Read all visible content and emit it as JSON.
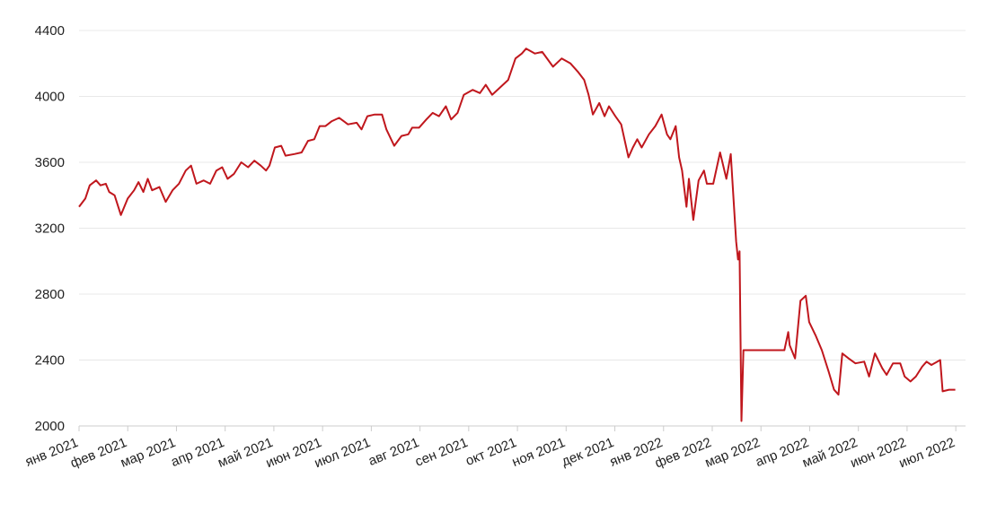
{
  "chart_data": {
    "type": "line",
    "xlim": [
      0,
      18.2
    ],
    "xticks": [
      {
        "value": 0,
        "label": "янв 2021"
      },
      {
        "value": 1,
        "label": "фев 2021"
      },
      {
        "value": 2,
        "label": "мар 2021"
      },
      {
        "value": 3,
        "label": "апр 2021"
      },
      {
        "value": 4,
        "label": "май 2021"
      },
      {
        "value": 5,
        "label": "июн 2021"
      },
      {
        "value": 6,
        "label": "июл 2021"
      },
      {
        "value": 7,
        "label": "авг 2021"
      },
      {
        "value": 8,
        "label": "сен 2021"
      },
      {
        "value": 9,
        "label": "окт 2021"
      },
      {
        "value": 10,
        "label": "ноя 2021"
      },
      {
        "value": 11,
        "label": "дек 2021"
      },
      {
        "value": 12,
        "label": "янв 2022"
      },
      {
        "value": 13,
        "label": "фев 2022"
      },
      {
        "value": 14,
        "label": "мар 2022"
      },
      {
        "value": 15,
        "label": "апр 2022"
      },
      {
        "value": 16,
        "label": "май 2022"
      },
      {
        "value": 17,
        "label": "июн 2022"
      },
      {
        "value": 18,
        "label": "июл 2022"
      }
    ],
    "ylim": [
      2000,
      4400
    ],
    "yticks": [
      2000,
      2400,
      2800,
      3200,
      3600,
      4000,
      4400
    ],
    "grid": true,
    "series": [
      {
        "color": "#c0171d",
        "x": [
          0,
          0.13,
          0.22,
          0.35,
          0.44,
          0.55,
          0.62,
          0.73,
          0.86,
          1.0,
          1.13,
          1.22,
          1.32,
          1.41,
          1.5,
          1.65,
          1.78,
          1.92,
          2.05,
          2.19,
          2.3,
          2.41,
          2.56,
          2.69,
          2.82,
          2.94,
          3.05,
          3.18,
          3.33,
          3.47,
          3.6,
          3.73,
          3.84,
          3.91,
          4.02,
          4.15,
          4.24,
          4.42,
          4.57,
          4.7,
          4.83,
          4.94,
          5.06,
          5.19,
          5.34,
          5.52,
          5.7,
          5.8,
          5.92,
          6.07,
          6.22,
          6.31,
          6.47,
          6.62,
          6.76,
          6.84,
          6.98,
          7.13,
          7.26,
          7.39,
          7.53,
          7.64,
          7.77,
          7.9,
          8.08,
          8.23,
          8.35,
          8.48,
          8.63,
          8.81,
          8.96,
          9.09,
          9.18,
          9.36,
          9.51,
          9.73,
          9.91,
          10.09,
          10.24,
          10.37,
          10.46,
          10.55,
          10.68,
          10.79,
          10.88,
          11.01,
          11.13,
          11.28,
          11.37,
          11.46,
          11.55,
          11.7,
          11.83,
          11.96,
          12.07,
          12.14,
          12.25,
          12.32,
          12.38,
          12.47,
          12.52,
          12.61,
          12.72,
          12.83,
          12.89,
          13.02,
          13.16,
          13.29,
          13.38,
          13.49,
          13.53,
          13.56,
          13.6,
          13.64,
          14.48,
          14.56,
          14.59,
          14.7,
          14.81,
          14.92,
          14.99,
          15.12,
          15.25,
          15.39,
          15.5,
          15.59,
          15.67,
          15.8,
          15.94,
          16.12,
          16.22,
          16.34,
          16.49,
          16.58,
          16.71,
          16.86,
          16.95,
          17.07,
          17.18,
          17.31,
          17.4,
          17.5,
          17.68,
          17.73,
          17.86,
          17.99
        ],
        "values": [
          3330,
          3380,
          3460,
          3490,
          3460,
          3470,
          3420,
          3400,
          3280,
          3380,
          3430,
          3480,
          3420,
          3500,
          3430,
          3450,
          3360,
          3430,
          3470,
          3550,
          3580,
          3470,
          3490,
          3470,
          3550,
          3570,
          3500,
          3530,
          3600,
          3570,
          3610,
          3580,
          3550,
          3580,
          3690,
          3700,
          3640,
          3650,
          3660,
          3730,
          3740,
          3820,
          3820,
          3850,
          3870,
          3830,
          3840,
          3800,
          3880,
          3890,
          3890,
          3800,
          3700,
          3760,
          3770,
          3810,
          3810,
          3860,
          3900,
          3880,
          3940,
          3860,
          3900,
          4010,
          4040,
          4020,
          4070,
          4010,
          4050,
          4100,
          4230,
          4260,
          4290,
          4260,
          4270,
          4180,
          4230,
          4200,
          4150,
          4100,
          4010,
          3890,
          3960,
          3880,
          3940,
          3880,
          3830,
          3630,
          3690,
          3740,
          3690,
          3770,
          3820,
          3890,
          3770,
          3740,
          3820,
          3630,
          3550,
          3330,
          3500,
          3250,
          3490,
          3550,
          3470,
          3470,
          3660,
          3500,
          3650,
          3120,
          3010,
          3060,
          2030,
          2460,
          2460,
          2570,
          2490,
          2410,
          2760,
          2790,
          2630,
          2550,
          2460,
          2330,
          2220,
          2190,
          2440,
          2410,
          2380,
          2390,
          2300,
          2440,
          2350,
          2310,
          2380,
          2380,
          2300,
          2270,
          2300,
          2360,
          2390,
          2370,
          2400,
          2210,
          2220,
          2220
        ]
      }
    ]
  }
}
